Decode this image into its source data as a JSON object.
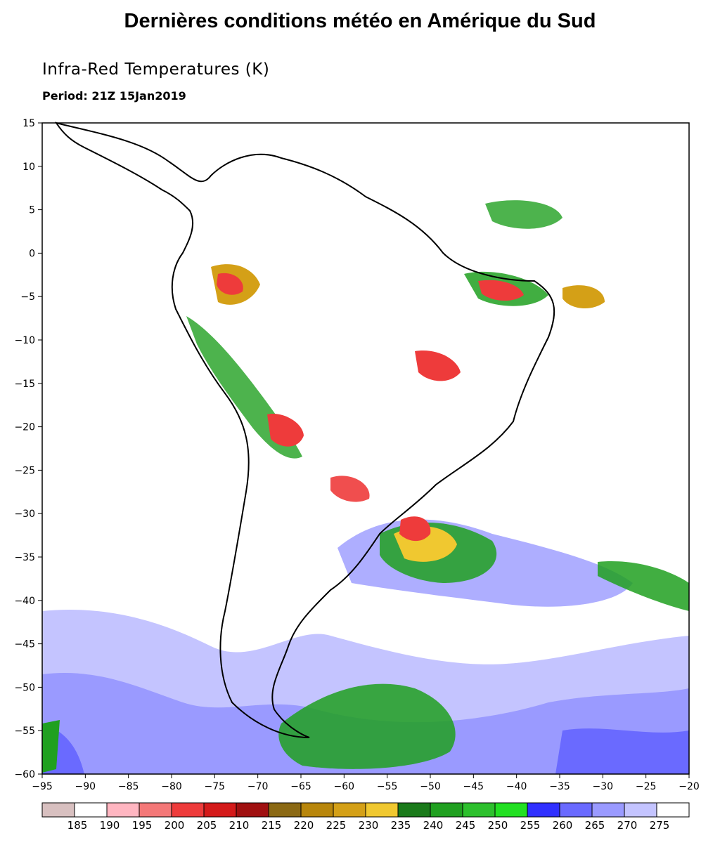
{
  "header": {
    "title": "Dernières conditions météo en Amérique du Sud",
    "subtitle": "Infra-Red Temperatures (K)",
    "period": "Period: 21Z 15Jan2019"
  },
  "map": {
    "lon_ticks": [
      "−95",
      "−90",
      "−85",
      "−80",
      "−75",
      "−70",
      "−65",
      "−60",
      "−55",
      "−50",
      "−45",
      "−40",
      "−35",
      "−30",
      "−25",
      "−20"
    ],
    "lat_ticks": [
      "15",
      "10",
      "5",
      "0",
      "−5",
      "−10",
      "−15",
      "−20",
      "−25",
      "−30",
      "−35",
      "−40",
      "−45",
      "−50",
      "−55",
      "−60"
    ],
    "lon_range": [
      -95,
      -20
    ],
    "lat_range": [
      -60,
      15
    ]
  },
  "legend": {
    "labels": [
      "185",
      "190",
      "195",
      "200",
      "205",
      "210",
      "215",
      "220",
      "225",
      "230",
      "235",
      "240",
      "245",
      "250",
      "255",
      "260",
      "265",
      "270",
      "275"
    ],
    "colors": [
      "#d8c0c0",
      "#ffffff",
      "#ffb6c1",
      "#f47878",
      "#ee3b3b",
      "#d41a1a",
      "#a01010",
      "#8b6914",
      "#b8860b",
      "#d4a017",
      "#f0c830",
      "#1a7a1a",
      "#20a020",
      "#2dc02d",
      "#22e022",
      "#3030ff",
      "#6a6aff",
      "#9a9aff",
      "#c4c4ff",
      "#ffffff"
    ]
  }
}
